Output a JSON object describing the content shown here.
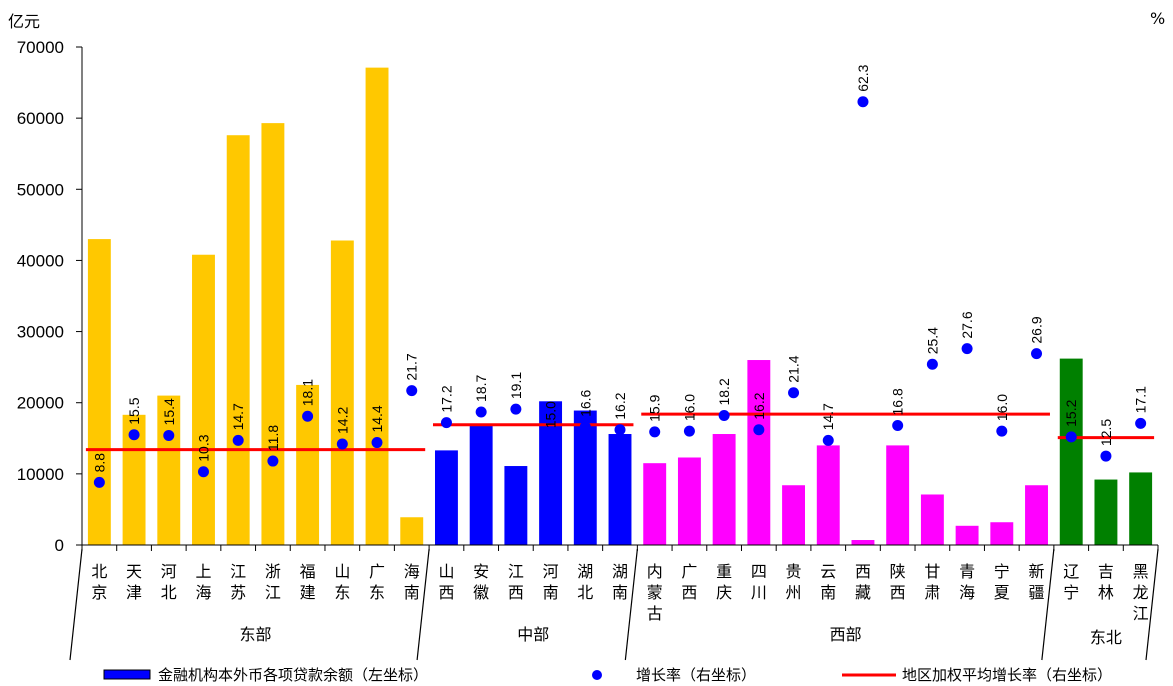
{
  "chart_data": {
    "type": "bar",
    "left_unit": "亿元",
    "right_unit": "%",
    "ylim": [
      0,
      70000
    ],
    "yticks": [
      "0",
      "10000",
      "20000",
      "30000",
      "40000",
      "50000",
      "60000",
      "70000"
    ],
    "y2lim": [
      0,
      70
    ],
    "grid": false,
    "legend_position": "bottom",
    "categories": [
      {
        "line1": "北",
        "line2": "京",
        "line3": "",
        "region": "东部",
        "value": 43000,
        "growth": 8.8,
        "label": "8.8"
      },
      {
        "line1": "天",
        "line2": "津",
        "line3": "",
        "region": "东部",
        "value": 18300,
        "growth": 15.5,
        "label": "15.5"
      },
      {
        "line1": "河",
        "line2": "北",
        "line3": "",
        "region": "东部",
        "value": 21000,
        "growth": 15.4,
        "label": "15.4"
      },
      {
        "line1": "上",
        "line2": "海",
        "line3": "",
        "region": "东部",
        "value": 40800,
        "growth": 10.3,
        "label": "10.3"
      },
      {
        "line1": "江",
        "line2": "苏",
        "line3": "",
        "region": "东部",
        "value": 57600,
        "growth": 14.7,
        "label": "14.7"
      },
      {
        "line1": "浙",
        "line2": "江",
        "line3": "",
        "region": "东部",
        "value": 59300,
        "growth": 11.8,
        "label": "11.8"
      },
      {
        "line1": "福",
        "line2": "建",
        "line3": "",
        "region": "东部",
        "value": 22500,
        "growth": 18.1,
        "label": "18.1"
      },
      {
        "line1": "山",
        "line2": "东",
        "line3": "",
        "region": "东部",
        "value": 42800,
        "growth": 14.2,
        "label": "14.2"
      },
      {
        "line1": "广",
        "line2": "东",
        "line3": "",
        "region": "东部",
        "value": 67100,
        "growth": 14.4,
        "label": "14.4"
      },
      {
        "line1": "海",
        "line2": "南",
        "line3": "",
        "region": "东部",
        "value": 3900,
        "growth": 21.7,
        "label": "21.7"
      },
      {
        "line1": "山",
        "line2": "西",
        "line3": "",
        "region": "中部",
        "value": 13300,
        "growth": 17.2,
        "label": "17.2"
      },
      {
        "line1": "安",
        "line2": "徽",
        "line3": "",
        "region": "中部",
        "value": 16800,
        "growth": 18.7,
        "label": "18.7"
      },
      {
        "line1": "江",
        "line2": "西",
        "line3": "",
        "region": "中部",
        "value": 11100,
        "growth": 19.1,
        "label": "19.1"
      },
      {
        "line1": "河",
        "line2": "南",
        "line3": "",
        "region": "中部",
        "value": 20200,
        "growth": 15.0,
        "label": "15.0"
      },
      {
        "line1": "湖",
        "line2": "北",
        "line3": "",
        "region": "中部",
        "value": 18900,
        "growth": 16.6,
        "label": "16.6"
      },
      {
        "line1": "湖",
        "line2": "南",
        "line3": "",
        "region": "中部",
        "value": 15600,
        "growth": 16.2,
        "label": "16.2"
      },
      {
        "line1": "内",
        "line2": "蒙",
        "line3": "古",
        "region": "西部",
        "value": 11500,
        "growth": 15.9,
        "label": "15.9"
      },
      {
        "line1": "广",
        "line2": "西",
        "line3": "",
        "region": "西部",
        "value": 12300,
        "growth": 16.0,
        "label": "16.0"
      },
      {
        "line1": "重",
        "line2": "庆",
        "line3": "",
        "region": "西部",
        "value": 15600,
        "growth": 18.2,
        "label": "18.2"
      },
      {
        "line1": "四",
        "line2": "川",
        "line3": "",
        "region": "西部",
        "value": 26000,
        "growth": 16.2,
        "label": "16.2"
      },
      {
        "line1": "贵",
        "line2": "州",
        "line3": "",
        "region": "西部",
        "value": 8400,
        "growth": 21.4,
        "label": "21.4"
      },
      {
        "line1": "云",
        "line2": "南",
        "line3": "",
        "region": "西部",
        "value": 14000,
        "growth": 14.7,
        "label": "14.7"
      },
      {
        "line1": "西",
        "line2": "藏",
        "line3": "",
        "region": "西部",
        "value": 700,
        "growth": 62.3,
        "label": "62.3"
      },
      {
        "line1": "陕",
        "line2": "西",
        "line3": "",
        "region": "西部",
        "value": 14000,
        "growth": 16.8,
        "label": "16.8"
      },
      {
        "line1": "甘",
        "line2": "肃",
        "line3": "",
        "region": "西部",
        "value": 7100,
        "growth": 25.4,
        "label": "25.4"
      },
      {
        "line1": "青",
        "line2": "海",
        "line3": "",
        "region": "西部",
        "value": 2700,
        "growth": 27.6,
        "label": "27.6"
      },
      {
        "line1": "宁",
        "line2": "夏",
        "line3": "",
        "region": "西部",
        "value": 3200,
        "growth": 16.0,
        "label": "16.0"
      },
      {
        "line1": "新",
        "line2": "疆",
        "line3": "",
        "region": "西部",
        "value": 8400,
        "growth": 26.9,
        "label": "26.9"
      },
      {
        "line1": "辽",
        "line2": "宁",
        "line3": "",
        "region": "东北",
        "value": 26200,
        "growth": 15.2,
        "label": "15.2"
      },
      {
        "line1": "吉",
        "line2": "林",
        "line3": "",
        "region": "东北",
        "value": 9200,
        "growth": 12.5,
        "label": "12.5"
      },
      {
        "line1": "黑",
        "line2": "龙",
        "line3": "江",
        "region": "东北",
        "value": 10200,
        "growth": 17.1,
        "label": "17.1"
      }
    ],
    "regions": [
      {
        "name": "东部",
        "start": 0,
        "end": 9,
        "avg_growth": 13.4,
        "color": "#FFC800"
      },
      {
        "name": "中部",
        "start": 10,
        "end": 15,
        "avg_growth": 16.9,
        "color": "#0000FF"
      },
      {
        "name": "西部",
        "start": 16,
        "end": 27,
        "avg_growth": 18.4,
        "color": "#FF00FF"
      },
      {
        "name": "东北",
        "start": 28,
        "end": 30,
        "avg_growth": 15.1,
        "color": "#008000"
      }
    ],
    "series": [
      {
        "name": "金融机构本外币各项贷款余额（左坐标）",
        "kind": "bar",
        "color": "#0000FF"
      },
      {
        "name": "增长率（右坐标）",
        "kind": "point",
        "color": "#0000FF"
      },
      {
        "name": "地区加权平均增长率（右坐标）",
        "kind": "line",
        "color": "#FF0000"
      }
    ]
  }
}
